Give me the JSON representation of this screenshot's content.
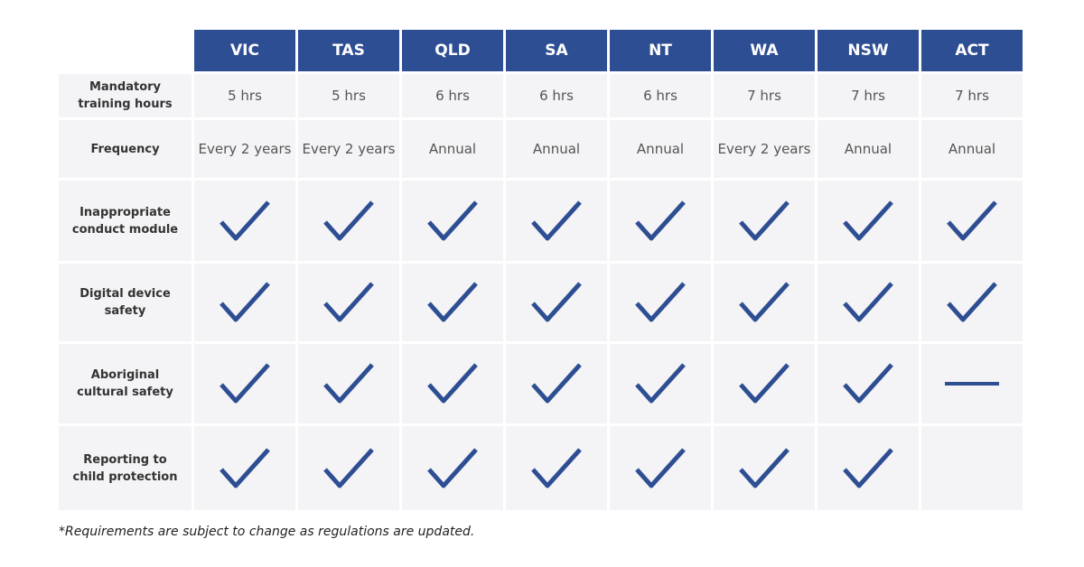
{
  "table": {
    "columns": [
      "VIC",
      "TAS",
      "QLD",
      "SA",
      "NT",
      "WA",
      "NSW",
      "ACT"
    ],
    "rows": [
      {
        "label": "Mandatory training hours",
        "cells": [
          "5 hrs",
          "5 hrs",
          "6 hrs",
          "6 hrs",
          "6 hrs",
          "7 hrs",
          "7 hrs",
          "7 hrs"
        ]
      },
      {
        "label": "Frequency",
        "cells": [
          "Every 2 years",
          "Every 2 years",
          "Annual",
          "Annual",
          "Annual",
          "Every 2 years",
          "Annual",
          "Annual"
        ]
      },
      {
        "label": "Inappropriate conduct module",
        "cells": [
          true,
          true,
          true,
          true,
          true,
          true,
          true,
          true
        ]
      },
      {
        "label": "Digital device safety",
        "cells": [
          true,
          true,
          true,
          true,
          true,
          true,
          true,
          true
        ]
      },
      {
        "label": "Aboriginal cultural safety",
        "cells": [
          true,
          true,
          true,
          true,
          true,
          true,
          true,
          false
        ]
      },
      {
        "label": "Reporting to child protection",
        "cells": [
          true,
          true,
          true,
          true,
          true,
          true,
          true,
          null
        ]
      }
    ]
  },
  "footnote": "*Requirements are subject to change as regulations are updated."
}
